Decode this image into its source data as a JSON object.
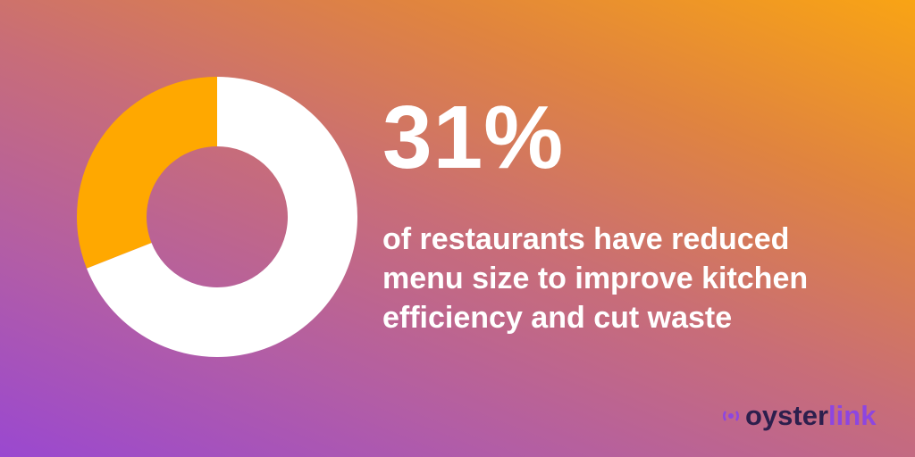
{
  "chart_data": {
    "type": "pie",
    "donut": true,
    "slices": [
      {
        "label": "reduced menu size",
        "value": 31,
        "color": "#ffa800"
      },
      {
        "label": "other",
        "value": 69,
        "color": "#ffffff"
      }
    ]
  },
  "headline": "31%",
  "caption": [
    "of restaurants have reduced",
    "menu size to improve kitchen",
    "efficiency and cut waste"
  ],
  "logo": {
    "part1": "oyster",
    "part2": "link"
  }
}
